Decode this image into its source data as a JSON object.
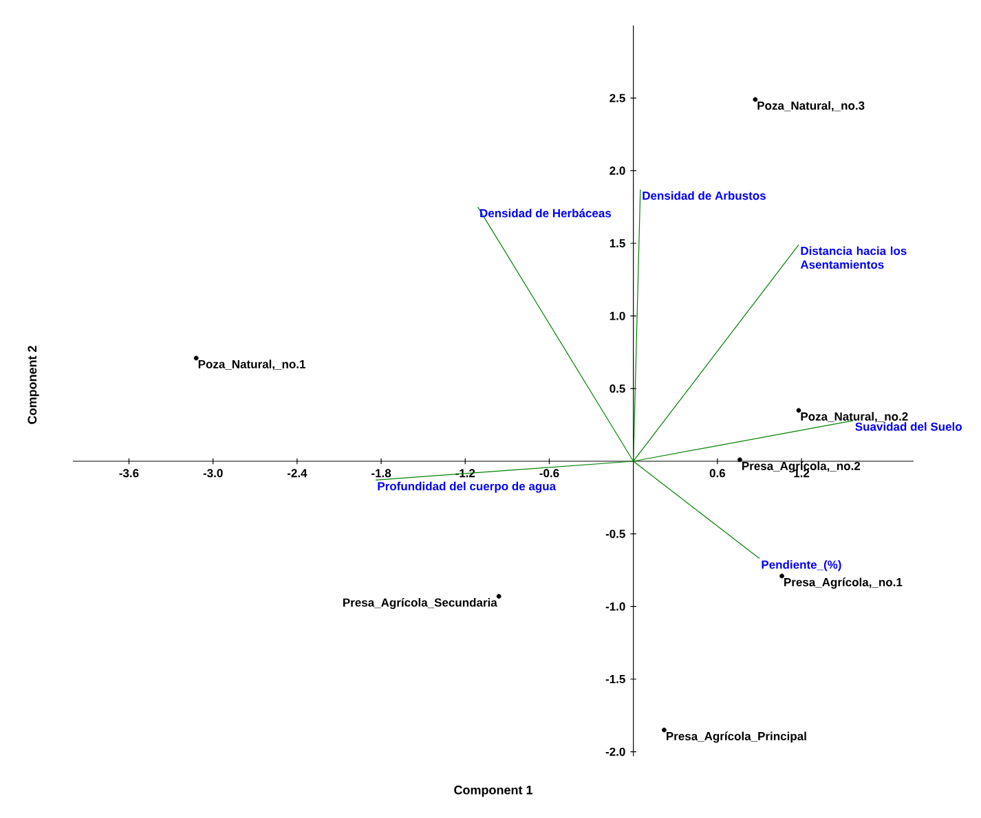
{
  "chart_data": {
    "type": "scatter",
    "xlabel": "Component 1",
    "ylabel": "Component 2",
    "xlim": [
      -4.0,
      2.0
    ],
    "ylim": [
      -2.03,
      3.0
    ],
    "xticks": [
      -3.6,
      {
        "value": -3,
        "label": "-3.0"
      },
      -2.4,
      -1.8,
      -1.2,
      -0.6,
      0.6,
      1.2
    ],
    "yticks": [
      2.5,
      {
        "value": 2,
        "label": "2.0"
      },
      1.5,
      {
        "value": 1,
        "label": "1.0"
      },
      0.5,
      -0.5,
      {
        "value": -1,
        "label": "-1.0"
      },
      -1.5,
      {
        "value": -2,
        "label": "-2.0"
      }
    ],
    "marker": "circle",
    "grid": false,
    "series": [
      {
        "color": "#000000",
        "x": [
          0.87,
          -3.12,
          1.18,
          0.76,
          1.06,
          -0.96,
          0.22
        ],
        "values": [
          2.49,
          0.71,
          0.35,
          0.01,
          -0.79,
          -0.93,
          -1.85
        ],
        "value_labels": [
          "Poza_Natural,_no.3",
          "Poza_Natural,_no.1",
          "Poza_Natural,_no.2",
          "Presa_Agrícola,_no.2",
          "Presa_Agrícola,_no.1",
          "Presa_Agrícola_Secundaria",
          "Presa_Agrícola_Principal"
        ]
      },
      {
        "type": "line",
        "marker": "none",
        "color": "#008000",
        "x": [
          0,
          -1.11,
          null,
          0,
          0.05,
          null,
          0,
          1.18,
          null,
          0,
          1.57,
          null,
          0,
          0.9,
          null,
          0,
          -1.84
        ],
        "values": [
          0,
          1.75,
          null,
          0,
          1.87,
          null,
          0,
          1.49,
          null,
          0,
          0.28,
          null,
          0,
          -0.67,
          null,
          0,
          -0.13
        ]
      }
    ],
    "annotations": [
      {
        "text": "Densidad de Herbáceas",
        "x": -1.11,
        "y": 1.75
      },
      {
        "text": "Densidad de Arbustos",
        "x": 0.05,
        "y": 1.87
      },
      {
        "text": "Distancia hacia los Asentamientos",
        "x": 1.18,
        "y": 1.49
      },
      {
        "text": "Suavidad del Suelo",
        "x": 1.57,
        "y": 0.28
      },
      {
        "text": "Pendiente_(%)",
        "x": 0.9,
        "y": -0.67
      },
      {
        "text": "Profundidad del cuerpo de agua",
        "x": -1.84,
        "y": -0.13
      }
    ]
  }
}
